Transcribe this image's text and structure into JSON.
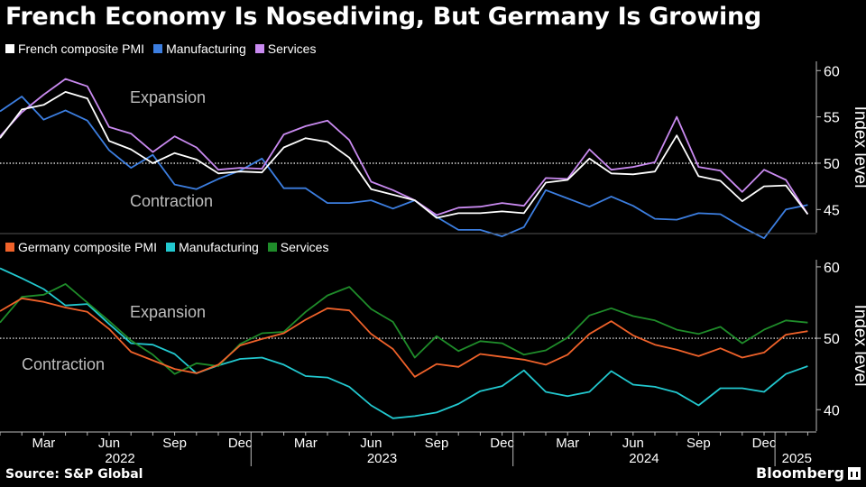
{
  "title": "French Economy Is Nosediving, But Germany Is Growing",
  "source": "Source: S&P Global",
  "brand": "Bloomberg",
  "chart_data": [
    {
      "type": "line",
      "id": "france",
      "ylabel": "Index level",
      "ylim": [
        42.5,
        61
      ],
      "yticks": [
        45,
        50,
        55,
        60
      ],
      "reference_line": 50,
      "annotations": {
        "upper": "Expansion",
        "lower": "Contraction"
      },
      "series": [
        {
          "name": "French composite PMI",
          "color": "#ffffff",
          "values": [
            52.7,
            55.8,
            56.3,
            57.7,
            57.0,
            52.4,
            51.5,
            50.0,
            51.1,
            50.4,
            48.9,
            49.1,
            49.0,
            51.7,
            52.7,
            52.3,
            50.6,
            47.2,
            46.6,
            46.0,
            44.1,
            44.6,
            44.6,
            44.8,
            44.6,
            47.9,
            48.2,
            50.5,
            48.9,
            48.8,
            49.1,
            53.0,
            48.6,
            48.1,
            45.9,
            47.5,
            47.6,
            44.5
          ]
        },
        {
          "name": "Manufacturing",
          "color": "#3c7ee0",
          "values": [
            55.6,
            57.2,
            54.7,
            55.7,
            54.6,
            51.4,
            49.5,
            50.9,
            47.7,
            47.2,
            48.3,
            49.2,
            50.5,
            47.3,
            47.3,
            45.7,
            45.7,
            46.0,
            45.1,
            46.0,
            44.2,
            42.8,
            42.8,
            42.1,
            43.1,
            47.1,
            46.2,
            45.3,
            46.4,
            45.4,
            44.0,
            43.9,
            44.6,
            44.5,
            43.1,
            41.9,
            45.0,
            45.5
          ]
        },
        {
          "name": "Services",
          "color": "#c98af0",
          "values": [
            52.9,
            55.5,
            57.4,
            59.1,
            58.3,
            53.9,
            53.2,
            51.2,
            52.9,
            51.7,
            49.3,
            49.5,
            49.4,
            53.1,
            54.0,
            54.6,
            52.5,
            48.0,
            47.1,
            46.0,
            44.4,
            45.2,
            45.3,
            45.7,
            45.4,
            48.4,
            48.3,
            51.5,
            49.3,
            49.6,
            50.1,
            55.0,
            49.6,
            49.2,
            46.9,
            49.3,
            48.2,
            44.5
          ]
        }
      ]
    },
    {
      "type": "line",
      "id": "germany",
      "ylabel": "Index level",
      "ylim": [
        37,
        61
      ],
      "yticks": [
        40,
        50,
        60
      ],
      "reference_line": 50,
      "annotations": {
        "upper": "Expansion",
        "lower": "Contraction"
      },
      "series": [
        {
          "name": "Germany composite PMI",
          "color": "#f0622a",
          "values": [
            53.8,
            55.6,
            55.1,
            54.3,
            53.7,
            51.3,
            48.1,
            46.9,
            45.7,
            45.1,
            46.3,
            49.0,
            49.9,
            50.7,
            52.6,
            54.2,
            53.9,
            50.6,
            48.5,
            44.6,
            46.4,
            46.0,
            47.8,
            47.4,
            47.0,
            46.3,
            47.7,
            50.6,
            52.4,
            50.4,
            49.1,
            48.4,
            47.5,
            48.6,
            47.3,
            48.0,
            50.5,
            51.0
          ]
        },
        {
          "name": "Manufacturing",
          "color": "#22c8cf",
          "values": [
            59.8,
            58.4,
            56.9,
            54.6,
            54.8,
            52.0,
            49.3,
            49.1,
            47.8,
            45.1,
            46.2,
            47.1,
            47.3,
            46.3,
            44.7,
            44.5,
            43.2,
            40.6,
            38.8,
            39.1,
            39.6,
            40.8,
            42.6,
            43.3,
            45.5,
            42.5,
            41.9,
            42.5,
            45.4,
            43.5,
            43.2,
            42.4,
            40.6,
            43.0,
            43.0,
            42.5,
            45.0,
            46.1
          ]
        },
        {
          "name": "Services",
          "color": "#1f8c2a",
          "values": [
            52.2,
            55.8,
            56.1,
            57.6,
            55.0,
            52.4,
            49.7,
            47.7,
            45.0,
            46.5,
            46.1,
            49.2,
            50.7,
            50.9,
            53.7,
            56.0,
            57.2,
            54.1,
            52.3,
            47.3,
            50.3,
            48.2,
            49.6,
            49.3,
            47.7,
            48.3,
            50.1,
            53.2,
            54.2,
            53.1,
            52.5,
            51.2,
            50.6,
            51.6,
            49.3,
            51.2,
            52.5,
            52.2
          ]
        }
      ]
    }
  ],
  "x_axis": {
    "month_labels": [
      "Mar",
      "Jun",
      "Sep",
      "Dec",
      "Mar",
      "Jun",
      "Sep",
      "Dec",
      "Mar",
      "Jun",
      "Sep",
      "Dec"
    ],
    "years": [
      "2022",
      "2023",
      "2024",
      "2025"
    ]
  }
}
